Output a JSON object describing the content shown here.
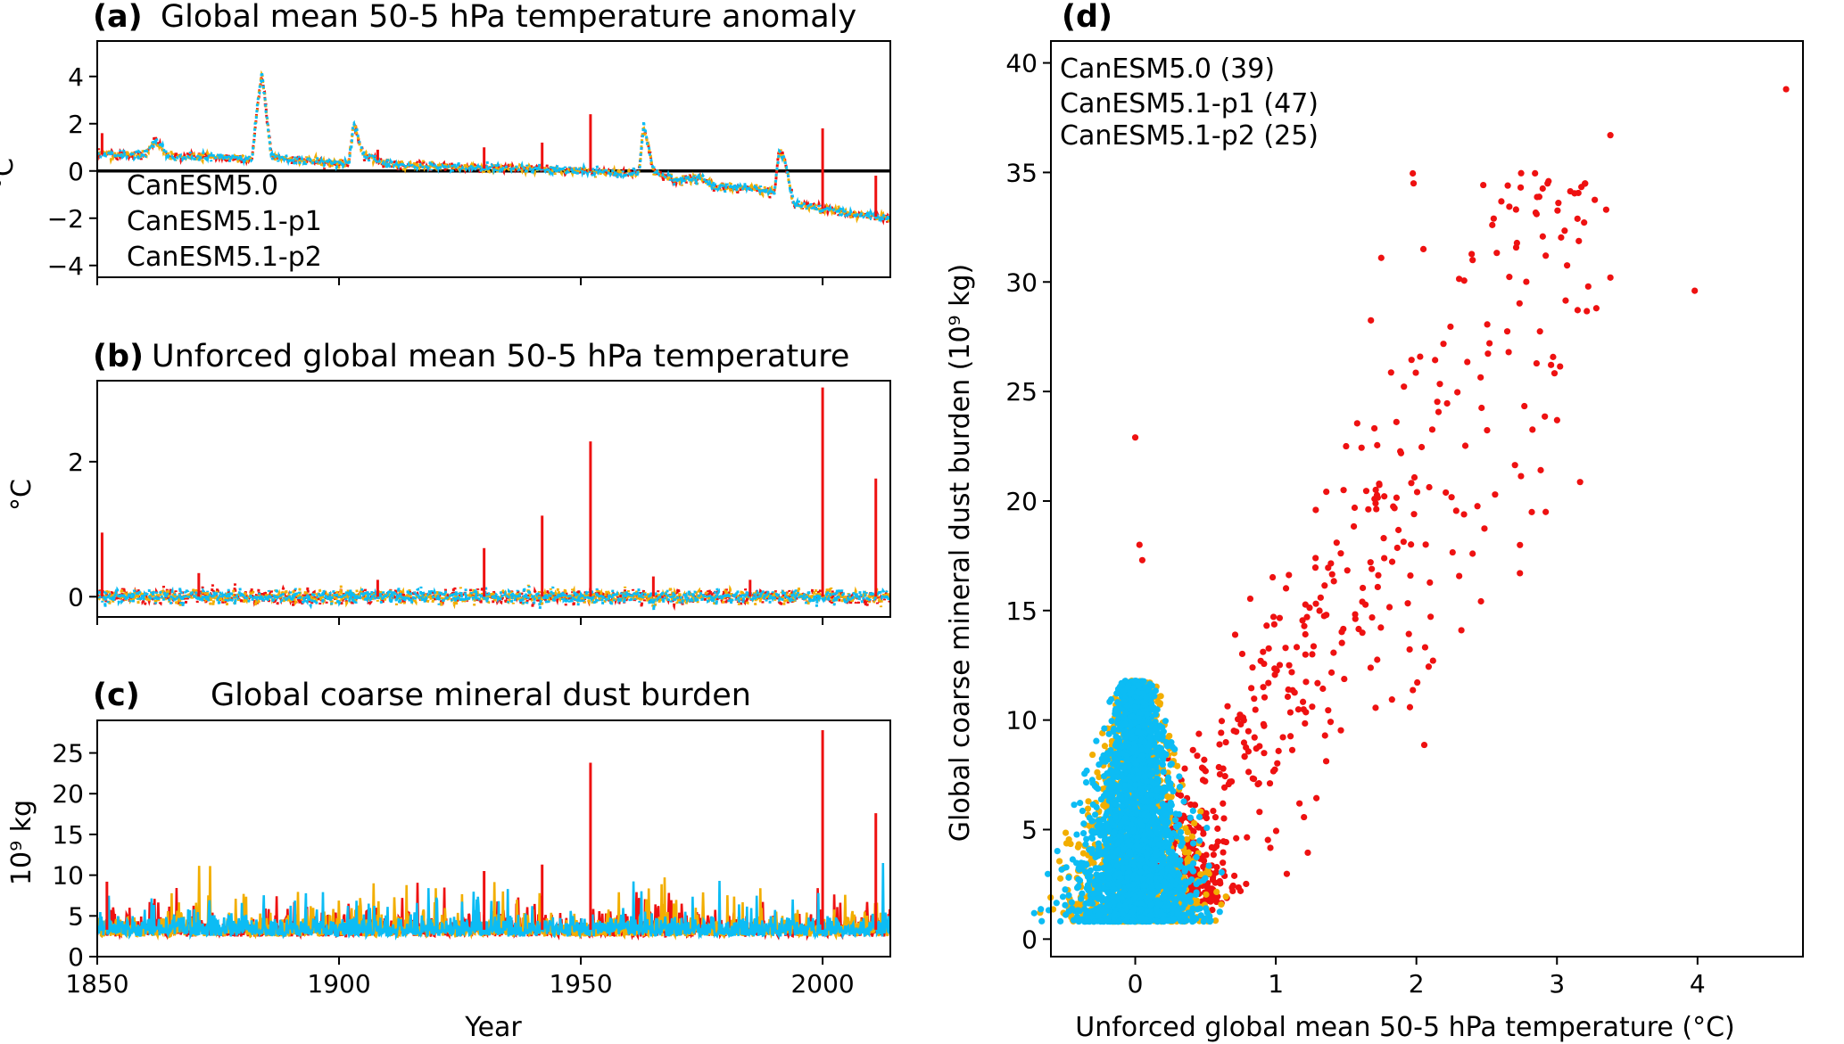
{
  "colors": {
    "c50": "#ee1111",
    "c51p1": "#f2ae00",
    "c51p2": "#0cbcf4",
    "axis": "#000000"
  },
  "series_labels": {
    "c50": "CanESM5.0",
    "c51p1": "CanESM5.1-p1",
    "c51p2": "CanESM5.1-p2"
  },
  "chart_data": [
    {
      "panel": "(a)",
      "type": "line",
      "title": "Global mean 50-5 hPa temperature anomaly",
      "ylabel": "°C",
      "xlim": [
        1850,
        2014
      ],
      "ylim": [
        -4.5,
        5.5
      ],
      "xticks": [
        1850,
        1900,
        1950,
        2000
      ],
      "xtick_labels": [
        "",
        "",
        "",
        ""
      ],
      "yticks": [
        -4,
        -2,
        0,
        2,
        4
      ],
      "ytick_labels": [
        "−4",
        "−2",
        "0",
        "2",
        "4"
      ],
      "hline": 0,
      "legend": "lower-left",
      "series_names": [
        "CanESM5.0",
        "CanESM5.1-p1",
        "CanESM5.1-p2"
      ],
      "baseline": {
        "x": [
          1850,
          1860,
          1862,
          1865,
          1875,
          1882,
          1883,
          1884,
          1886,
          1890,
          1900,
          1902,
          1903,
          1905,
          1910,
          1920,
          1930,
          1940,
          1950,
          1960,
          1962,
          1963,
          1965,
          1970,
          1975,
          1978,
          1985,
          1990,
          1991,
          1992,
          1994,
          2000,
          2005,
          2014
        ],
        "y": [
          0.7,
          0.7,
          1.3,
          0.6,
          0.6,
          0.5,
          2.5,
          4.2,
          0.6,
          0.5,
          0.3,
          0.3,
          2.0,
          0.7,
          0.3,
          0.2,
          0.1,
          0.1,
          0.0,
          -0.1,
          -0.1,
          1.9,
          0.0,
          -0.4,
          -0.3,
          -0.7,
          -0.7,
          -0.9,
          0.8,
          0.6,
          -1.4,
          -1.6,
          -1.8,
          -2.0
        ]
      },
      "c50_spikes": {
        "x": [
          1851,
          1908,
          1930,
          1942,
          1952,
          2000,
          2011
        ],
        "y": [
          1.6,
          0.9,
          1.0,
          1.2,
          2.4,
          1.8,
          -0.2
        ]
      }
    },
    {
      "panel": "(b)",
      "type": "line",
      "title": "Unforced global mean 50-5 hPa temperature",
      "ylabel": "°C",
      "xlim": [
        1850,
        2014
      ],
      "ylim": [
        -0.3,
        3.2
      ],
      "xticks": [
        1850,
        1900,
        1950,
        2000
      ],
      "xtick_labels": [
        "",
        "",
        "",
        ""
      ],
      "yticks": [
        0,
        2
      ],
      "ytick_labels": [
        "0",
        "2"
      ],
      "series_names": [
        "CanESM5.0",
        "CanESM5.1-p1",
        "CanESM5.1-p2"
      ],
      "baseline": {
        "x": [
          1850,
          2014
        ],
        "y": [
          0.0,
          0.0
        ]
      },
      "c50_spikes": {
        "x": [
          1851,
          1871,
          1908,
          1930,
          1942,
          1952,
          1965,
          1985,
          2000,
          2011
        ],
        "y": [
          0.95,
          0.35,
          0.25,
          0.72,
          1.2,
          2.3,
          0.3,
          0.25,
          3.1,
          1.75
        ]
      }
    },
    {
      "panel": "(c)",
      "type": "line",
      "title": "Global coarse mineral dust burden",
      "ylabel": "10⁹ kg",
      "xlabel": "Year",
      "xlim": [
        1850,
        2014
      ],
      "ylim": [
        0,
        29
      ],
      "xticks": [
        1850,
        1900,
        1950,
        2000
      ],
      "xtick_labels": [
        "1850",
        "1900",
        "1950",
        "2000"
      ],
      "yticks": [
        0,
        5,
        10,
        15,
        20,
        25
      ],
      "ytick_labels": [
        "0",
        "5",
        "10",
        "15",
        "20",
        "25"
      ],
      "series_names": [
        "CanESM5.0",
        "CanESM5.1-p1",
        "CanESM5.1-p2"
      ],
      "baseline": {
        "x": [
          1850,
          2014
        ],
        "y": [
          3.3,
          3.3
        ]
      },
      "c50_spikes": {
        "x": [
          1852,
          1930,
          1942,
          1952,
          2000,
          2011
        ],
        "y": [
          9.2,
          10.5,
          11.3,
          23.8,
          27.8,
          17.6
        ]
      }
    },
    {
      "panel": "(d)",
      "type": "scatter",
      "xlabel": "Unforced global mean 50-5 hPa temperature (°C)",
      "ylabel": "Global coarse mineral dust burden (10⁹ kg)",
      "xlim": [
        -0.6,
        4.75
      ],
      "ylim": [
        -0.8,
        41
      ],
      "xticks": [
        0,
        1,
        2,
        3,
        4
      ],
      "xtick_labels": [
        "0",
        "1",
        "2",
        "3",
        "4"
      ],
      "yticks": [
        0,
        5,
        10,
        15,
        20,
        25,
        30,
        35,
        40
      ],
      "ytick_labels": [
        "0",
        "5",
        "10",
        "15",
        "20",
        "25",
        "30",
        "35",
        "40"
      ],
      "legend": "upper-left",
      "series_names": [
        "CanESM5.0 (39)",
        "CanESM5.1-p1 (47)",
        "CanESM5.1-p2 (25)"
      ],
      "highlight_points": {
        "x": [
          4.63,
          3.98,
          3.38,
          3.35,
          3.38,
          3.28,
          2.94,
          2.92,
          2.65,
          2.54,
          2.4,
          2.05,
          1.98,
          1.75,
          1.5,
          2.52,
          2.92,
          0.0,
          0.03,
          0.05,
          2.32
        ],
        "y": [
          38.8,
          29.6,
          36.7,
          33.3,
          30.2,
          28.8,
          34.6,
          19.5,
          34.4,
          32.6,
          31.0,
          31.5,
          34.5,
          31.1,
          22.5,
          27.2,
          31.2,
          22.9,
          18.0,
          17.3,
          14.1
        ]
      }
    }
  ]
}
